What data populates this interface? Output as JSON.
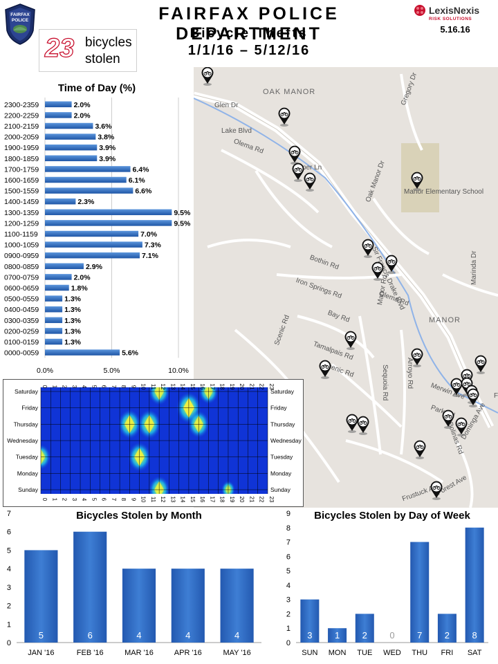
{
  "header": {
    "department": "FAIRFAX POLICE DEPARTMENT",
    "subtitle": "Bicycle Thefts",
    "date_range": "1/1/16 – 5/12/16",
    "badge_text": [
      "FAIRFAX",
      "POLICE"
    ]
  },
  "brand": {
    "name": "LexisNexis",
    "tagline": "RISK SOLUTIONS",
    "report_date": "5.16.16"
  },
  "summary": {
    "count": "23",
    "label_line1": "bicycles",
    "label_line2": "stolen"
  },
  "map": {
    "labels": [
      "OAK MANOR",
      "Glen Dr",
      "Lake Blvd",
      "Olema Rd",
      "Piper Ln",
      "Gregory Dr",
      "Oak Manor Dr",
      "Manor Elementary School",
      "Sir Francis Drake Blvd",
      "Bothin Rd",
      "Iron Springs Rd",
      "Olema Rd",
      "Marinda Dr",
      "MANOR",
      "Bay Rd",
      "Manor Rd",
      "Scenic Rd",
      "Tamalpais Rd",
      "Scenic Rd",
      "Sequoia Rd",
      "Arroyo Rd",
      "Merwin Ave",
      "Park Rd",
      "Bolinas Rd",
      "Dominga Ave",
      "Forest Ave",
      "Frustuck Ave",
      "Fa"
    ]
  },
  "chart_data": [
    {
      "type": "bar",
      "orientation": "horizontal",
      "title": "Time of Day (%)",
      "categories": [
        "2300-2359",
        "2200-2259",
        "2100-2159",
        "2000-2059",
        "1900-1959",
        "1800-1859",
        "1700-1759",
        "1600-1659",
        "1500-1559",
        "1400-1459",
        "1300-1359",
        "1200-1259",
        "1100-1159",
        "1000-1059",
        "0900-0959",
        "0800-0859",
        "0700-0759",
        "0600-0659",
        "0500-0559",
        "0400-0459",
        "0300-0359",
        "0200-0259",
        "0100-0159",
        "0000-0059"
      ],
      "values": [
        2.0,
        2.0,
        3.6,
        3.8,
        3.9,
        3.9,
        6.4,
        6.1,
        6.6,
        2.3,
        9.5,
        9.5,
        7.0,
        7.3,
        7.1,
        2.9,
        2.0,
        1.8,
        1.3,
        1.3,
        1.3,
        1.3,
        1.3,
        5.6
      ],
      "value_labels": [
        "2.0%",
        "2.0%",
        "3.6%",
        "3.8%",
        "3.9%",
        "3.9%",
        "6.4%",
        "6.1%",
        "6.6%",
        "2.3%",
        "9.5%",
        "9.5%",
        "7.0%",
        "7.3%",
        "7.1%",
        "2.9%",
        "2.0%",
        "1.8%",
        "1.3%",
        "1.3%",
        "1.3%",
        "1.3%",
        "1.3%",
        "5.6%"
      ],
      "xlim": [
        0,
        10
      ],
      "x_ticks": [
        "0.0%",
        "5.0%",
        "10.0%"
      ],
      "grid": true,
      "bar_color": "#2f6fc0"
    },
    {
      "type": "heatmap",
      "title": "",
      "rows": [
        "Saturday",
        "Friday",
        "Thursday",
        "Wednesday",
        "Tuesday",
        "Monday",
        "Sunday"
      ],
      "columns": [
        "0",
        "1",
        "2",
        "3",
        "4",
        "5",
        "6",
        "7",
        "8",
        "9",
        "10",
        "11",
        "12",
        "13",
        "14",
        "15",
        "16",
        "17",
        "18",
        "19",
        "20",
        "21",
        "22",
        "23"
      ],
      "hotspots": [
        {
          "day": "Saturday",
          "hour": 12,
          "level": 0.8
        },
        {
          "day": "Saturday",
          "hour": 17,
          "level": 0.7
        },
        {
          "day": "Friday",
          "hour": 15,
          "level": 1.0
        },
        {
          "day": "Thursday",
          "hour": 9,
          "level": 0.9
        },
        {
          "day": "Thursday",
          "hour": 11,
          "level": 0.9
        },
        {
          "day": "Thursday",
          "hour": 16,
          "level": 0.8
        },
        {
          "day": "Tuesday",
          "hour": 0,
          "level": 0.7
        },
        {
          "day": "Tuesday",
          "hour": 10,
          "level": 0.9
        },
        {
          "day": "Sunday",
          "hour": 12,
          "level": 0.8
        },
        {
          "day": "Sunday",
          "hour": 19,
          "level": 0.35
        }
      ],
      "colors": {
        "low": "#1034d6",
        "mid": "#22c7e8",
        "high": "#f0f040"
      }
    },
    {
      "type": "bar",
      "title": "Bicycles Stolen by Month",
      "categories": [
        "JAN '16",
        "FEB '16",
        "MAR '16",
        "APR '16",
        "MAY '16"
      ],
      "values": [
        5,
        6,
        4,
        4,
        4
      ],
      "ylim": [
        0,
        7
      ],
      "y_ticks": [
        "0",
        "1",
        "2",
        "3",
        "4",
        "5",
        "6",
        "7"
      ],
      "bar_color": "#2f6fc0"
    },
    {
      "type": "bar",
      "title": "Bicycles Stolen by Day of Week",
      "categories": [
        "SUN",
        "MON",
        "TUE",
        "WED",
        "THU",
        "FRI",
        "SAT"
      ],
      "values": [
        3,
        1,
        2,
        0,
        7,
        2,
        8
      ],
      "ylim": [
        0,
        9
      ],
      "y_ticks": [
        "0",
        "1",
        "2",
        "3",
        "4",
        "5",
        "6",
        "7",
        "8",
        "9"
      ],
      "bar_color": "#2f6fc0"
    }
  ]
}
